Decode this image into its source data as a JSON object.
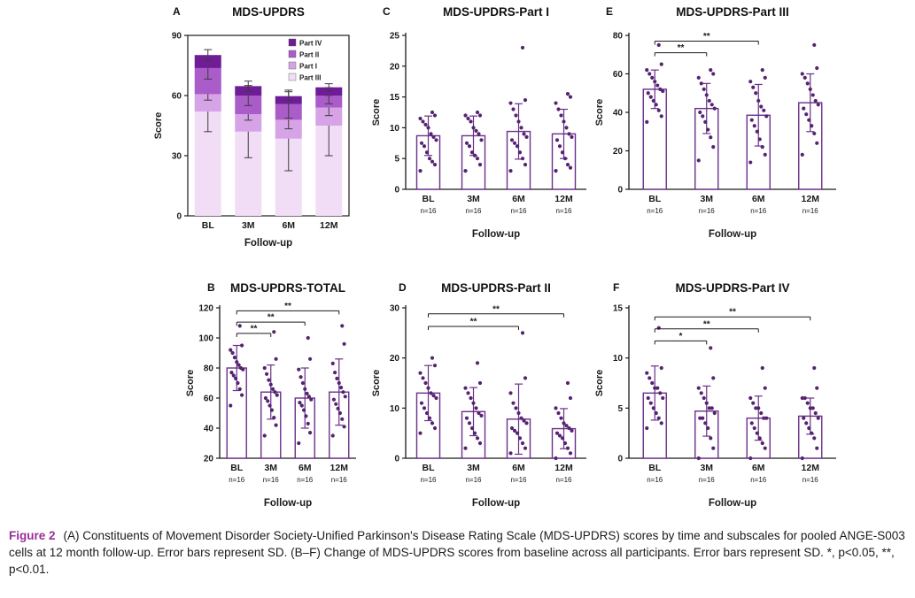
{
  "figure": {
    "caption_label": "Figure 2",
    "caption_text": "(A) Constituents of Movement Disorder Society-Unified Parkinson's Disease Rating Scale (MDS-UPDRS) scores by time and subscales for pooled ANGE-S003 cells at 12 month follow-up. Error bars represent SD. (B–F) Change of MDS-UPDRS scores from baseline across all participants. Error bars represent SD. *, p<0.05, **, p<0.01."
  },
  "colors": {
    "axis": "#1a1a1a",
    "bar_outline": "#6b2f8a",
    "point": "#552470",
    "error": "#6b2f8a",
    "stacked_error": "#3d3d3d",
    "bracket": "#1a1a1a",
    "caption_label": "#9b2c98"
  },
  "chart_data": [
    {
      "panel": "A",
      "title": "MDS-UPDRS",
      "type": "stacked-bar",
      "categories": [
        "BL",
        "3M",
        "6M",
        "12M"
      ],
      "xlabel": "Follow-up",
      "ylabel": "Score",
      "ylim": [
        0,
        90
      ],
      "yticks": [
        0,
        30,
        60,
        90
      ],
      "legend": [
        "Part IV",
        "Part II",
        "Part I",
        "Part III"
      ],
      "series": [
        {
          "name": "Part III",
          "color": "#f2ddf6",
          "values": [
            52,
            42,
            38.5,
            45
          ],
          "sd": [
            10,
            13,
            16,
            15
          ]
        },
        {
          "name": "Part I",
          "color": "#d6a4e6",
          "values": [
            8.7,
            8.7,
            9.4,
            9.0
          ],
          "sd": [
            3,
            3,
            4.5,
            4
          ]
        },
        {
          "name": "Part II",
          "color": "#aa5cc8",
          "values": [
            13,
            9.3,
            7.8,
            5.9
          ],
          "sd": [
            5.5,
            5,
            7,
            4
          ]
        },
        {
          "name": "Part IV",
          "color": "#6f1d96",
          "values": [
            6.5,
            4.7,
            4.0,
            4.2
          ],
          "sd": [
            2.7,
            2.5,
            2.2,
            1.8
          ]
        }
      ]
    },
    {
      "panel": "C",
      "title": "MDS-UPDRS-Part I",
      "type": "scatter-bar",
      "categories": [
        "BL",
        "3M",
        "6M",
        "12M"
      ],
      "n_labels": [
        "n=16",
        "n=16",
        "n=16",
        "n=16"
      ],
      "xlabel": "Follow-up",
      "ylabel": "Score",
      "ylim": [
        0,
        25
      ],
      "yticks": [
        0,
        5,
        10,
        15,
        20,
        25
      ],
      "means": [
        8.7,
        8.7,
        9.4,
        9.0
      ],
      "sd": [
        3.2,
        3.2,
        4.5,
        4.0
      ],
      "points": [
        [
          3,
          4,
          4.5,
          5,
          6,
          7,
          7.5,
          8,
          8.5,
          9,
          10,
          10.5,
          11,
          11.5,
          12,
          12.5
        ],
        [
          3,
          4,
          5,
          5.5,
          6,
          7,
          7.5,
          8,
          9,
          9.5,
          10,
          11,
          11.5,
          12,
          12,
          12.5
        ],
        [
          3,
          4,
          5,
          6,
          7,
          7.5,
          8,
          8.5,
          9,
          10,
          11,
          12,
          13,
          14,
          14.5,
          23
        ],
        [
          3,
          3.5,
          4,
          5,
          6,
          7,
          8,
          8.5,
          9,
          10,
          11,
          12,
          13,
          14,
          15,
          15.5
        ]
      ],
      "brackets": []
    },
    {
      "panel": "E",
      "title": "MDS-UPDRS-Part III",
      "type": "scatter-bar",
      "categories": [
        "BL",
        "3M",
        "6M",
        "12M"
      ],
      "n_labels": [
        "n=16",
        "n=16",
        "n=16",
        "n=16"
      ],
      "xlabel": "Follow-up",
      "ylabel": "Score",
      "ylim": [
        0,
        80
      ],
      "yticks": [
        0,
        20,
        40,
        60,
        80
      ],
      "means": [
        52,
        42,
        38.5,
        45
      ],
      "sd": [
        10,
        13,
        16,
        15
      ],
      "points": [
        [
          35,
          38,
          41,
          44,
          46,
          48,
          50,
          51,
          52,
          54,
          56,
          58,
          60,
          62,
          65,
          75
        ],
        [
          15,
          22,
          27,
          31,
          35,
          38,
          40,
          42,
          44,
          46,
          49,
          52,
          55,
          58,
          60,
          62
        ],
        [
          14,
          18,
          22,
          26,
          30,
          33,
          36,
          38,
          41,
          43,
          46,
          50,
          53,
          56,
          58,
          62
        ],
        [
          18,
          24,
          29,
          33,
          36,
          39,
          42,
          44,
          46,
          49,
          52,
          55,
          58,
          60,
          63,
          75
        ]
      ],
      "brackets": [
        {
          "a": 0,
          "b": 1,
          "label": "**",
          "y": 71
        },
        {
          "a": 0,
          "b": 2,
          "label": "**",
          "y": 77
        }
      ]
    },
    {
      "panel": "B",
      "title": "MDS-UPDRS-TOTAL",
      "type": "scatter-bar",
      "categories": [
        "BL",
        "3M",
        "6M",
        "12M"
      ],
      "n_labels": [
        "n=16",
        "n=16",
        "n=16",
        "n=16"
      ],
      "xlabel": "Follow-up",
      "ylabel": "Score",
      "ylim": [
        20,
        120
      ],
      "yticks": [
        20,
        40,
        60,
        80,
        100,
        120
      ],
      "means": [
        80,
        64,
        60,
        64
      ],
      "sd": [
        15,
        18,
        20,
        22
      ],
      "points": [
        [
          55,
          62,
          66,
          70,
          73,
          75,
          77,
          79,
          80,
          82,
          84,
          87,
          90,
          92,
          95,
          108
        ],
        [
          35,
          42,
          47,
          52,
          55,
          58,
          60,
          62,
          64,
          66,
          69,
          72,
          76,
          80,
          86,
          104
        ],
        [
          30,
          37,
          43,
          48,
          52,
          55,
          57,
          59,
          61,
          63,
          66,
          70,
          74,
          79,
          86,
          100
        ],
        [
          35,
          41,
          46,
          50,
          53,
          56,
          59,
          61,
          64,
          67,
          70,
          73,
          77,
          83,
          96,
          108
        ]
      ],
      "brackets": [
        {
          "a": 0,
          "b": 1,
          "label": "**",
          "y": 103
        },
        {
          "a": 0,
          "b": 2,
          "label": "**",
          "y": 110.5
        },
        {
          "a": 0,
          "b": 3,
          "label": "**",
          "y": 118
        }
      ]
    },
    {
      "panel": "D",
      "title": "MDS-UPDRS-Part II",
      "type": "scatter-bar",
      "categories": [
        "BL",
        "3M",
        "6M",
        "12M"
      ],
      "n_labels": [
        "n=16",
        "n=16",
        "n=16",
        "n=16"
      ],
      "xlabel": "Follow-up",
      "ylabel": "Score",
      "ylim": [
        0,
        30
      ],
      "yticks": [
        0,
        10,
        20,
        30
      ],
      "means": [
        13,
        9.3,
        7.8,
        5.9
      ],
      "sd": [
        5.5,
        4.8,
        7.0,
        4.0
      ],
      "points": [
        [
          5,
          6,
          7,
          8,
          9,
          10,
          11,
          12,
          12.5,
          13,
          14,
          15,
          16,
          17,
          18.5,
          20
        ],
        [
          2,
          3,
          4,
          5,
          6,
          7,
          8,
          8.5,
          9,
          10,
          11,
          12,
          13,
          14,
          15,
          19
        ],
        [
          1,
          2,
          3,
          4,
          5,
          5.5,
          6,
          7,
          7.5,
          8,
          9,
          10,
          11,
          13,
          16,
          25
        ],
        [
          0,
          1,
          2,
          3,
          4,
          4.5,
          5,
          5.5,
          6,
          6.5,
          7,
          8,
          9,
          10,
          12,
          15
        ]
      ],
      "brackets": [
        {
          "a": 0,
          "b": 2,
          "label": "**",
          "y": 26.3
        },
        {
          "a": 0,
          "b": 3,
          "label": "**",
          "y": 28.8
        }
      ]
    },
    {
      "panel": "F",
      "title": "MDS-UPDRS-Part IV",
      "type": "scatter-bar",
      "categories": [
        "BL",
        "3M",
        "6M",
        "12M"
      ],
      "n_labels": [
        "n=16",
        "n=16",
        "n=16",
        "n=16"
      ],
      "xlabel": "Follow-up",
      "ylabel": "Score",
      "ylim": [
        0,
        15
      ],
      "yticks": [
        0,
        5,
        10,
        15
      ],
      "means": [
        6.5,
        4.7,
        4.0,
        4.2
      ],
      "sd": [
        2.7,
        2.5,
        2.2,
        1.8
      ],
      "points": [
        [
          3,
          3.5,
          4,
          4.5,
          5,
          5.5,
          6,
          6,
          6.5,
          7,
          7,
          7.5,
          8,
          8.5,
          9,
          13
        ],
        [
          0,
          1,
          2,
          3,
          3.5,
          4,
          4,
          4.5,
          5,
          5,
          5.5,
          6,
          6.5,
          7,
          8,
          11
        ],
        [
          0,
          1,
          1.5,
          2,
          2.5,
          3,
          3.5,
          4,
          4,
          4.5,
          5,
          5,
          5.5,
          6,
          7,
          9
        ],
        [
          0,
          1,
          2,
          2.5,
          3,
          3.5,
          4,
          4,
          4.5,
          5,
          5,
          5.5,
          6,
          6,
          7,
          9
        ]
      ],
      "brackets": [
        {
          "a": 0,
          "b": 1,
          "label": "*",
          "y": 11.7
        },
        {
          "a": 0,
          "b": 2,
          "label": "**",
          "y": 12.9
        },
        {
          "a": 0,
          "b": 3,
          "label": "**",
          "y": 14.1
        }
      ]
    }
  ]
}
